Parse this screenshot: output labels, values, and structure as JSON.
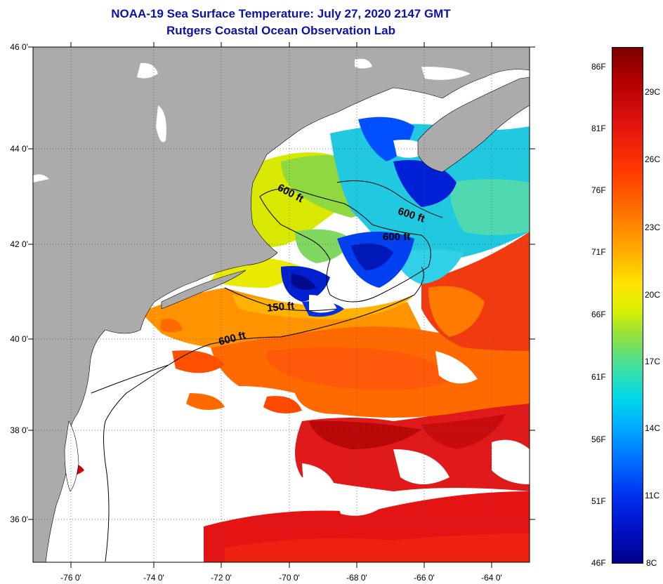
{
  "title_line1": "NOAA-19 Sea Surface Temperature:  July 27, 2020 2147 GMT",
  "title_line2": "Rutgers Coastal Ocean Observation Lab",
  "lat_ticks": [
    "46 0'",
    "44 0'",
    "42 0'",
    "40 0'",
    "38 0'",
    "36 0'"
  ],
  "lon_ticks": [
    "-76 0'",
    "-74 0'",
    "-72 0'",
    "-70 0'",
    "-68 0'",
    "-66 0'",
    "-64 0'"
  ],
  "contour_labels": [
    "600 ft",
    "600 ft",
    "600 ft",
    "150 ft",
    "600 ft"
  ],
  "colorbar": {
    "fahrenheit": [
      "86F",
      "81F",
      "76F",
      "71F",
      "66F",
      "61F",
      "56F",
      "51F",
      "46F"
    ],
    "celsius": [
      "29C",
      "26C",
      "23C",
      "20C",
      "17C",
      "14C",
      "11C",
      "8C"
    ]
  },
  "colors": {
    "title": "#0c12a8",
    "land": "#ababab",
    "clouds": "#ffffff"
  }
}
